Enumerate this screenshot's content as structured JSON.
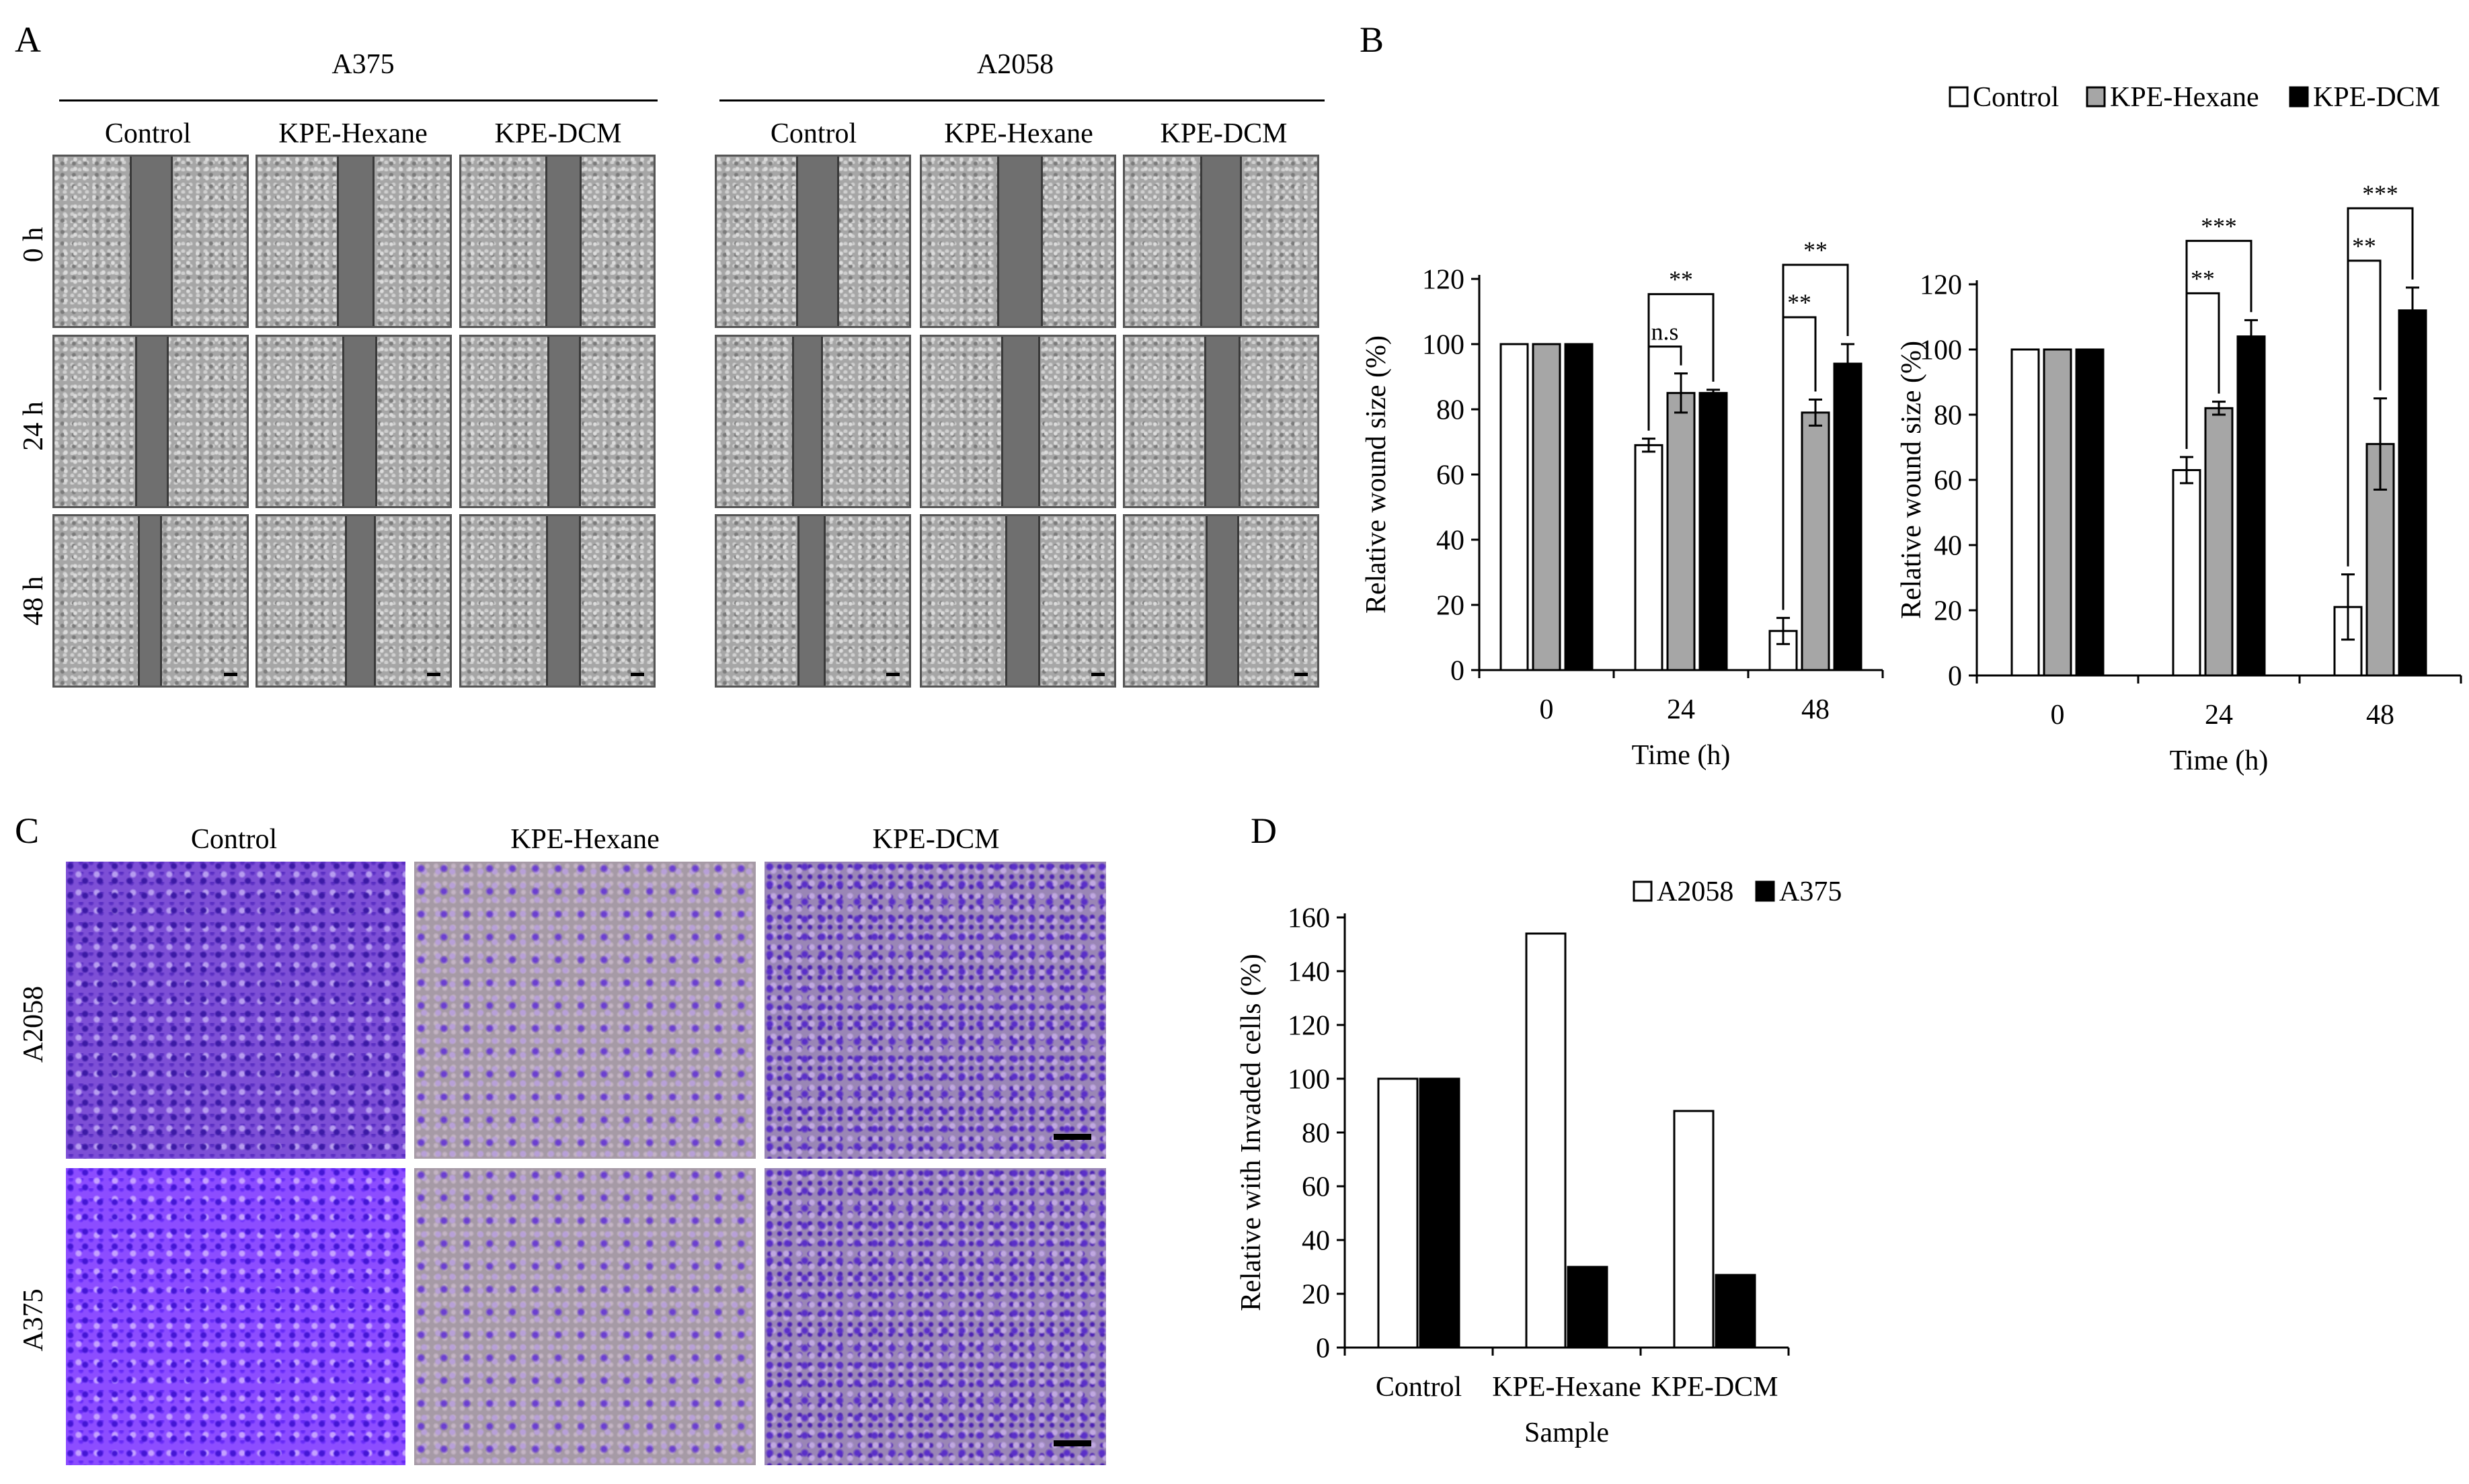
{
  "panels": {
    "a": {
      "letter": "A",
      "groups": [
        {
          "title": "A375",
          "columns": [
            "Control",
            "KPE-Hexane",
            "KPE-DCM"
          ]
        },
        {
          "title": "A2058",
          "columns": [
            "Control",
            "KPE-Hexane",
            "KPE-DCM"
          ]
        }
      ],
      "rows": [
        "0 h",
        "24 h",
        "48 h"
      ]
    },
    "b": {
      "letter": "B"
    },
    "c": {
      "letter": "C",
      "columns": [
        "Control",
        "KPE-Hexane",
        "KPE-DCM"
      ],
      "rows": [
        "A2058",
        "A375"
      ]
    },
    "d": {
      "letter": "D"
    }
  },
  "chart_data": [
    {
      "type": "bar",
      "panel": "B-left",
      "categories": [
        "0",
        "24",
        "48"
      ],
      "xlabel": "Time (h)",
      "ylabel": "Relative wound size (%)",
      "ylim": [
        0,
        120
      ],
      "yticks": [
        "0",
        "20",
        "40",
        "60",
        "80",
        "100",
        "120"
      ],
      "series": [
        {
          "name": "Control",
          "color": "#ffffff",
          "values": [
            100,
            69,
            12
          ],
          "errors": [
            0,
            2,
            4
          ]
        },
        {
          "name": "KPE-Hexane",
          "color": "#a6a6a6",
          "values": [
            100,
            85,
            79
          ],
          "errors": [
            0,
            6,
            4
          ]
        },
        {
          "name": "KPE-DCM",
          "color": "#000000",
          "values": [
            100,
            85,
            94
          ],
          "errors": [
            0,
            1,
            6
          ]
        }
      ],
      "annotations": [
        {
          "category": "24",
          "from": 0,
          "to": 1,
          "text": "n.s"
        },
        {
          "category": "24",
          "from": 0,
          "to": 2,
          "text": "**"
        },
        {
          "category": "48",
          "from": 0,
          "to": 1,
          "text": "**"
        },
        {
          "category": "48",
          "from": 0,
          "to": 2,
          "text": "**"
        }
      ]
    },
    {
      "type": "bar",
      "panel": "B-right",
      "categories": [
        "0",
        "24",
        "48"
      ],
      "xlabel": "Time (h)",
      "ylabel": "Relative wound size (%)",
      "ylim": [
        0,
        120
      ],
      "yticks": [
        "0",
        "20",
        "40",
        "60",
        "80",
        "100",
        "120"
      ],
      "legend": [
        "Control",
        "KPE-Hexane",
        "KPE-DCM"
      ],
      "legend_position": "top",
      "series": [
        {
          "name": "Control",
          "color": "#ffffff",
          "values": [
            100,
            63,
            21
          ],
          "errors": [
            0,
            4,
            10
          ]
        },
        {
          "name": "KPE-Hexane",
          "color": "#a6a6a6",
          "values": [
            100,
            82,
            71
          ],
          "errors": [
            0,
            2,
            14
          ]
        },
        {
          "name": "KPE-DCM",
          "color": "#000000",
          "values": [
            100,
            104,
            112
          ],
          "errors": [
            0,
            5,
            7
          ]
        }
      ],
      "annotations": [
        {
          "category": "24",
          "from": 0,
          "to": 1,
          "text": "**"
        },
        {
          "category": "24",
          "from": 0,
          "to": 2,
          "text": "***"
        },
        {
          "category": "48",
          "from": 0,
          "to": 1,
          "text": "**"
        },
        {
          "category": "48",
          "from": 0,
          "to": 2,
          "text": "***"
        }
      ]
    },
    {
      "type": "bar",
      "panel": "D",
      "categories": [
        "Control",
        "KPE-Hexane",
        "KPE-DCM"
      ],
      "xlabel": "Sample",
      "ylabel": "Relative with Invaded cells (%)",
      "ylim": [
        0,
        160
      ],
      "yticks": [
        "0",
        "20",
        "40",
        "60",
        "80",
        "100",
        "120",
        "140",
        "160"
      ],
      "legend": [
        "A2058",
        "A375"
      ],
      "legend_position": "top",
      "series": [
        {
          "name": "A2058",
          "color": "#ffffff",
          "values": [
            100,
            154,
            88
          ]
        },
        {
          "name": "A375",
          "color": "#000000",
          "values": [
            100,
            30,
            27
          ]
        }
      ]
    }
  ]
}
